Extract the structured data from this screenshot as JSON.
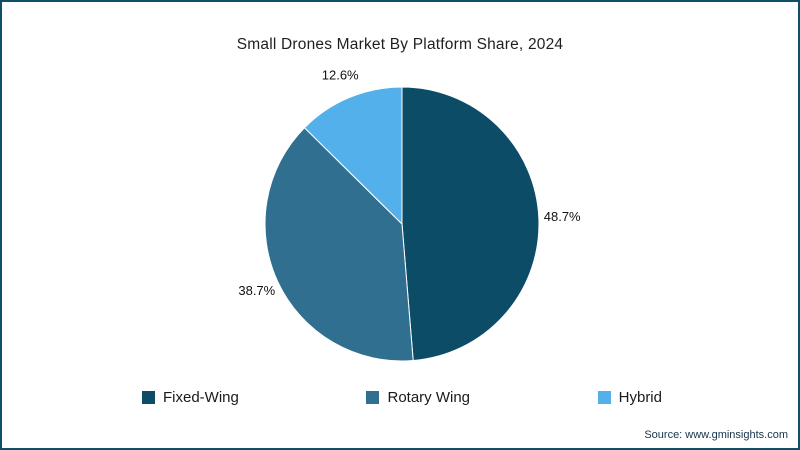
{
  "title": "Small Drones Market By Platform Share, 2024",
  "source": "Source: www.gminsights.com",
  "frame_border_color": "#0e4e66",
  "chart_data": {
    "type": "pie",
    "title": "Small Drones Market By Platform Share, 2024",
    "start_angle_deg": 0,
    "direction": "clockwise",
    "legend_position": "bottom",
    "data_labels": "percent-outside",
    "series": [
      {
        "name": "Fixed-Wing",
        "value": 48.7,
        "label": "48.7%",
        "color": "#0d4c66"
      },
      {
        "name": "Rotary Wing",
        "value": 38.7,
        "label": "38.7%",
        "color": "#306f8f"
      },
      {
        "name": "Hybrid",
        "value": 12.6,
        "label": "12.6%",
        "color": "#53b0ea"
      }
    ]
  }
}
